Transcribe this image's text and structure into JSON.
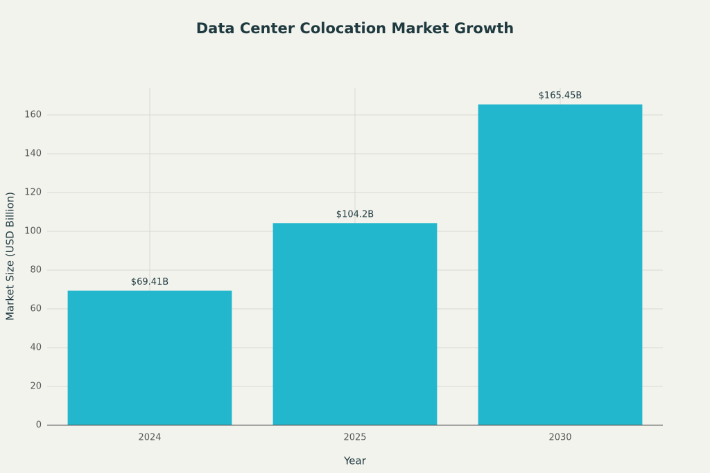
{
  "chart_data": {
    "type": "bar",
    "title": "Data Center Colocation Market Growth",
    "x_label": "Year",
    "y_label": "Market Size (USD Billion)",
    "categories": [
      "2024",
      "2025",
      "2030"
    ],
    "values": [
      69.41,
      104.2,
      165.45
    ],
    "value_labels": [
      "$69.41B",
      "$104.2B",
      "$165.45B"
    ],
    "color": "#22b7cc",
    "ylim": [
      0,
      174
    ],
    "yticks": [
      0,
      20,
      40,
      60,
      80,
      100,
      120,
      140,
      160
    ],
    "grid": true
  }
}
